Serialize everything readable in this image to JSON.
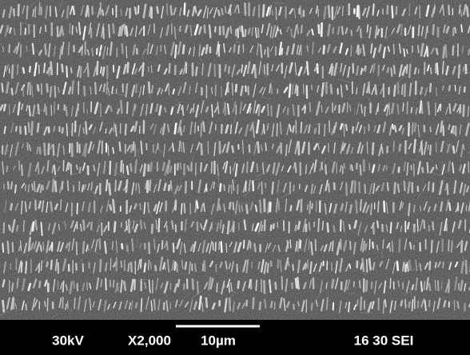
{
  "info_bar": {
    "voltage": "30kV",
    "magnification": "X2,000",
    "scale": "10µm",
    "label": "16 30 SEI"
  }
}
